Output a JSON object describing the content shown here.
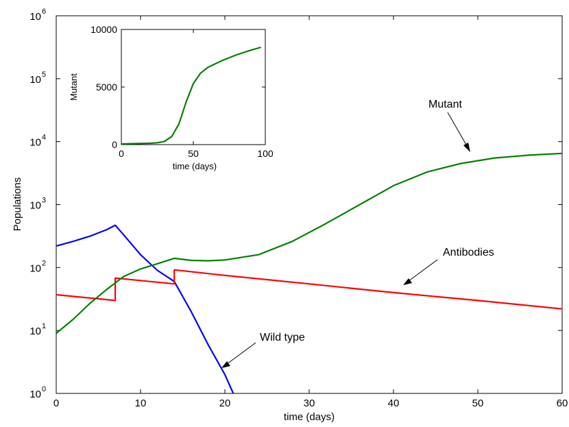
{
  "chart_data": [
    {
      "type": "line",
      "xlabel": "time (days)",
      "ylabel": "Populations",
      "xlim": [
        0,
        60
      ],
      "ylim": [
        1,
        1000000
      ],
      "y_scale": "log",
      "grid": false,
      "x_ticks": [
        0,
        10,
        20,
        30,
        40,
        50,
        60
      ],
      "y_ticks": [
        {
          "base": "10",
          "exp": "0",
          "value": 1
        },
        {
          "base": "10",
          "exp": "1",
          "value": 10
        },
        {
          "base": "10",
          "exp": "2",
          "value": 100
        },
        {
          "base": "10",
          "exp": "3",
          "value": 1000
        },
        {
          "base": "10",
          "exp": "4",
          "value": 10000
        },
        {
          "base": "10",
          "exp": "5",
          "value": 100000
        },
        {
          "base": "10",
          "exp": "6",
          "value": 1000000
        }
      ],
      "series": [
        {
          "name": "Wild type",
          "color": "#0000ff",
          "x": [
            0,
            2,
            4,
            6,
            7,
            8,
            10,
            12,
            14,
            16,
            18,
            20,
            21
          ],
          "y": [
            220,
            260,
            315,
            400,
            470,
            330,
            160,
            90,
            60,
            20,
            6,
            2.0,
            1.0
          ]
        },
        {
          "name": "Antibodies",
          "color": "#ff0000",
          "x": [
            0,
            7,
            7,
            14,
            14,
            20,
            30,
            40,
            50,
            60
          ],
          "y": [
            37,
            30,
            68,
            55,
            92,
            75,
            55,
            40,
            30,
            22
          ]
        },
        {
          "name": "Mutant",
          "color": "#008000",
          "x": [
            0,
            2,
            4,
            6,
            8,
            10,
            12,
            14,
            16,
            18,
            20,
            24,
            28,
            32,
            36,
            40,
            44,
            48,
            52,
            56,
            60
          ],
          "y": [
            9,
            15,
            27,
            45,
            72,
            95,
            115,
            140,
            130,
            128,
            132,
            160,
            260,
            500,
            1000,
            2000,
            3300,
            4500,
            5500,
            6100,
            6500
          ]
        }
      ],
      "annotations": [
        {
          "text": "Mutant",
          "points_to": [
            52,
            4200
          ]
        },
        {
          "text": "Antibodies",
          "points_to": [
            41.5,
            38
          ]
        },
        {
          "text": "Wild type",
          "points_to": [
            19.2,
            2.6
          ]
        }
      ]
    },
    {
      "type": "line",
      "xlabel": "time (days)",
      "ylabel": "Mutant",
      "xlim": [
        0,
        100
      ],
      "ylim": [
        0,
        10000
      ],
      "y_scale": "linear",
      "grid": false,
      "x_ticks": [
        0,
        50,
        100
      ],
      "y_ticks": [
        0,
        5000,
        10000
      ],
      "series": [
        {
          "name": "Mutant",
          "color": "#008000",
          "x": [
            0,
            10,
            20,
            25,
            30,
            35,
            40,
            45,
            50,
            55,
            60,
            65,
            70,
            80,
            90,
            97
          ],
          "y": [
            60,
            90,
            120,
            160,
            280,
            700,
            1800,
            3700,
            5300,
            6200,
            6700,
            7000,
            7300,
            7800,
            8200,
            8450
          ]
        }
      ]
    }
  ]
}
